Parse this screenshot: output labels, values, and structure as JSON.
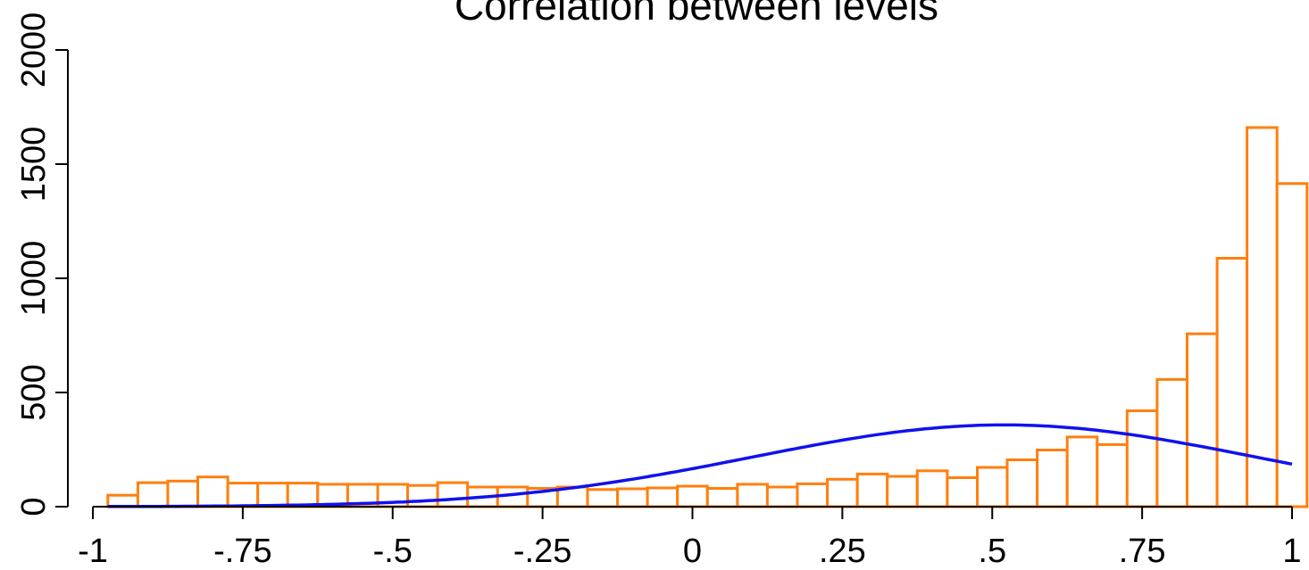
{
  "chart_data": {
    "type": "bar",
    "title": "Correlation between levels",
    "xlabel": "",
    "ylabel": "",
    "xlim": [
      -1,
      1
    ],
    "ylim": [
      0,
      2000
    ],
    "bin_width": 0.05,
    "x_ticks": [
      {
        "value": -1,
        "label": "-1"
      },
      {
        "value": -0.75,
        "label": "-.75"
      },
      {
        "value": -0.5,
        "label": "-.5"
      },
      {
        "value": -0.25,
        "label": "-.25"
      },
      {
        "value": 0,
        "label": "0"
      },
      {
        "value": 0.25,
        "label": ".25"
      },
      {
        "value": 0.5,
        "label": ".5"
      },
      {
        "value": 0.75,
        "label": ".75"
      },
      {
        "value": 1,
        "label": "1"
      }
    ],
    "y_ticks": [
      {
        "value": 0,
        "label": "0"
      },
      {
        "value": 500,
        "label": "500"
      },
      {
        "value": 1000,
        "label": "1000"
      },
      {
        "value": 1500,
        "label": "1500"
      },
      {
        "value": 2000,
        "label": "2000"
      }
    ],
    "bins": [
      {
        "x0": -0.975,
        "x1": -0.925,
        "count": 50
      },
      {
        "x0": -0.925,
        "x1": -0.875,
        "count": 105
      },
      {
        "x0": -0.875,
        "x1": -0.825,
        "count": 112
      },
      {
        "x0": -0.825,
        "x1": -0.775,
        "count": 130
      },
      {
        "x0": -0.775,
        "x1": -0.725,
        "count": 103
      },
      {
        "x0": -0.725,
        "x1": -0.675,
        "count": 103
      },
      {
        "x0": -0.675,
        "x1": -0.625,
        "count": 103
      },
      {
        "x0": -0.625,
        "x1": -0.575,
        "count": 98
      },
      {
        "x0": -0.575,
        "x1": -0.525,
        "count": 98
      },
      {
        "x0": -0.525,
        "x1": -0.475,
        "count": 98
      },
      {
        "x0": -0.475,
        "x1": -0.425,
        "count": 93
      },
      {
        "x0": -0.425,
        "x1": -0.375,
        "count": 105
      },
      {
        "x0": -0.375,
        "x1": -0.325,
        "count": 86
      },
      {
        "x0": -0.325,
        "x1": -0.275,
        "count": 86
      },
      {
        "x0": -0.275,
        "x1": -0.225,
        "count": 80
      },
      {
        "x0": -0.225,
        "x1": -0.175,
        "count": 86
      },
      {
        "x0": -0.175,
        "x1": -0.125,
        "count": 75
      },
      {
        "x0": -0.125,
        "x1": -0.075,
        "count": 78
      },
      {
        "x0": -0.075,
        "x1": -0.025,
        "count": 82
      },
      {
        "x0": -0.025,
        "x1": 0.025,
        "count": 90
      },
      {
        "x0": 0.025,
        "x1": 0.075,
        "count": 80
      },
      {
        "x0": 0.075,
        "x1": 0.125,
        "count": 98
      },
      {
        "x0": 0.125,
        "x1": 0.175,
        "count": 86
      },
      {
        "x0": 0.175,
        "x1": 0.225,
        "count": 100
      },
      {
        "x0": 0.225,
        "x1": 0.275,
        "count": 120
      },
      {
        "x0": 0.275,
        "x1": 0.325,
        "count": 143
      },
      {
        "x0": 0.325,
        "x1": 0.375,
        "count": 133
      },
      {
        "x0": 0.375,
        "x1": 0.425,
        "count": 157
      },
      {
        "x0": 0.425,
        "x1": 0.475,
        "count": 127
      },
      {
        "x0": 0.475,
        "x1": 0.525,
        "count": 172
      },
      {
        "x0": 0.525,
        "x1": 0.575,
        "count": 205
      },
      {
        "x0": 0.575,
        "x1": 0.625,
        "count": 248
      },
      {
        "x0": 0.625,
        "x1": 0.675,
        "count": 305
      },
      {
        "x0": 0.675,
        "x1": 0.725,
        "count": 272
      },
      {
        "x0": 0.725,
        "x1": 0.775,
        "count": 420
      },
      {
        "x0": 0.775,
        "x1": 0.825,
        "count": 557
      },
      {
        "x0": 0.825,
        "x1": 0.875,
        "count": 757
      },
      {
        "x0": 0.875,
        "x1": 0.925,
        "count": 1088
      },
      {
        "x0": 0.925,
        "x1": 0.975,
        "count": 1660
      },
      {
        "x0": 0.975,
        "x1": 1.025,
        "count": 1415
      }
    ],
    "curve": {
      "type": "normal-density",
      "mean": 0.52,
      "sd": 0.42,
      "peak": 358,
      "x_start": -0.975,
      "x_end": 1.0
    },
    "colors": {
      "bar_outline": "#ff7f0e",
      "bar_fill": "#ffffff",
      "curve": "#1111ee",
      "axis": "#000000"
    },
    "grid": false,
    "legend": "none"
  }
}
